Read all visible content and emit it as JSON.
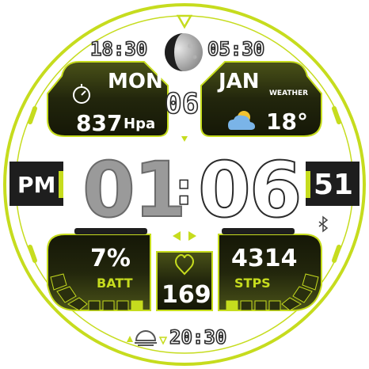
{
  "time": {
    "hours": "01",
    "minutes": "06",
    "seconds": "51",
    "ampm": "PM"
  },
  "date": {
    "weekday": "MON",
    "month": "JAN",
    "day": "06"
  },
  "moon": {
    "sunrise": "18:30",
    "sunset": "05:30"
  },
  "pressure": {
    "value": "837",
    "unit": "Hpa"
  },
  "weather": {
    "label": "WEATHER",
    "temp": "18°"
  },
  "battery": {
    "value": "7%",
    "label": "BATT",
    "level_percent": 7
  },
  "steps": {
    "value": "4314",
    "label": "STPS"
  },
  "heart": {
    "value": "169"
  },
  "alarm": {
    "time": "20:30"
  },
  "colors": {
    "accent": "#c6dc1e",
    "panel": "#2a2f0e",
    "dark": "#1e1e1e",
    "grey": "#9a9a9a"
  },
  "icons": [
    "stopwatch-icon",
    "cloud-sun-icon",
    "heart-icon",
    "sunrise-icon",
    "moon-icon",
    "bluetooth-icon"
  ]
}
